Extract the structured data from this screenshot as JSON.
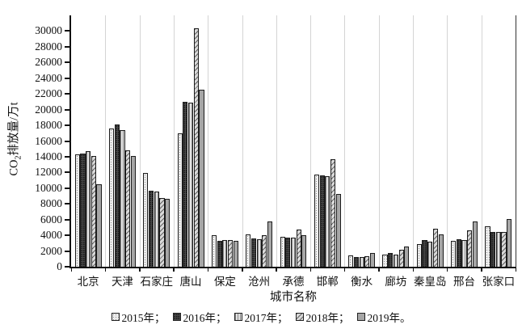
{
  "chart_data": {
    "type": "bar",
    "title": "",
    "xlabel": "城市名称",
    "ylabel": {
      "pre": "CO",
      "sub": "2",
      "post": "排放量/万t"
    },
    "categories": [
      "北京",
      "天津",
      "石家庄",
      "唐山",
      "保定",
      "沧州",
      "承德",
      "邯郸",
      "衡水",
      "廊坊",
      "秦皇岛",
      "邢台",
      "张家口"
    ],
    "series": [
      {
        "name": "2015年",
        "legend_label": "2015年；",
        "pattern": "dot-grid-light",
        "values": [
          14300,
          17600,
          11900,
          17000,
          4050,
          4100,
          3800,
          11700,
          1450,
          1550,
          2850,
          3250,
          5150
        ]
      },
      {
        "name": "2016年",
        "legend_label": "2016年；",
        "pattern": "dark-dense-dots",
        "values": [
          14450,
          18150,
          9650,
          21000,
          3300,
          3650,
          3700,
          11600,
          1200,
          1800,
          3350,
          3450,
          4400
        ]
      },
      {
        "name": "2017年",
        "legend_label": "2017年；",
        "pattern": "vertical-lines",
        "values": [
          14750,
          17400,
          9600,
          20900,
          3400,
          3500,
          3700,
          11500,
          1200,
          1550,
          3150,
          3350,
          4400
        ]
      },
      {
        "name": "2018年",
        "legend_label": "2018年；",
        "pattern": "diagonal-hatch",
        "values": [
          14050,
          14800,
          8700,
          30400,
          3350,
          4000,
          4700,
          13700,
          1350,
          2150,
          4850,
          4650,
          4400
        ]
      },
      {
        "name": "2019年",
        "legend_label": "2019年。",
        "pattern": "solid-gray",
        "values": [
          10500,
          14100,
          8650,
          22500,
          3300,
          5800,
          4000,
          9250,
          1700,
          2600,
          4100,
          5750,
          6050
        ]
      }
    ],
    "ylim": [
      0,
      32000
    ],
    "ytick_step": 2000,
    "ytick_max_labeled": 30000,
    "grid": "vertical-group-separators",
    "legend_position": "bottom"
  },
  "colors": {
    "axis": "#111111",
    "gridline": "#d4d4d4",
    "series_tones": [
      "#ededed",
      "#4a4a4a",
      "#e4e4e4",
      "#d9d9d9",
      "#a6a6a6"
    ]
  }
}
